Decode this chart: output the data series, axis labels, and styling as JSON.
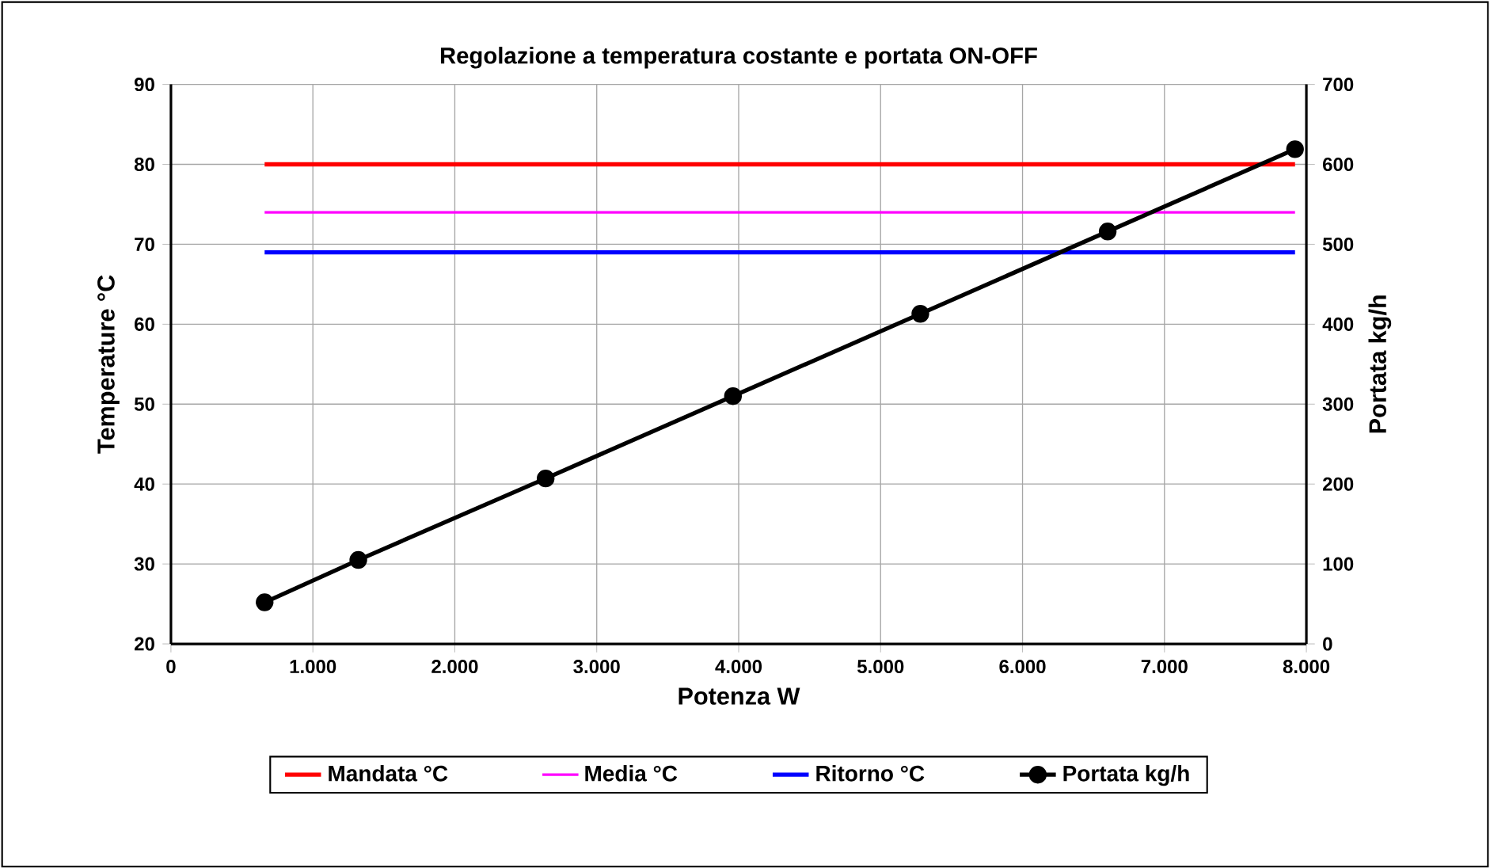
{
  "chart_data": {
    "type": "line",
    "title": "Regolazione a temperatura costante e portata ON-OFF",
    "xlabel": "Potenza W",
    "ylabel": "Temperature °C",
    "y2label": "Portata kg/h",
    "xlim": [
      0,
      8000
    ],
    "xticks": [
      0,
      {
        "value": 1000,
        "label": "1.000"
      },
      {
        "value": 2000,
        "label": "2.000"
      },
      {
        "value": 3000,
        "label": "3.000"
      },
      {
        "value": 4000,
        "label": "4.000"
      },
      {
        "value": 5000,
        "label": "5.000"
      },
      {
        "value": 6000,
        "label": "6.000"
      },
      {
        "value": 7000,
        "label": "7.000"
      },
      {
        "value": 8000,
        "label": "8.000"
      }
    ],
    "ylim": [
      20,
      90
    ],
    "yticks": [
      20,
      30,
      40,
      50,
      60,
      70,
      80,
      90
    ],
    "y2lim": [
      0,
      700
    ],
    "y2ticks": [
      0,
      100,
      200,
      300,
      400,
      500,
      600,
      700
    ],
    "grid": true,
    "legend": "bottom",
    "series": [
      {
        "name": "Mandata °C",
        "color": "#ff0000",
        "x": [
          660,
          7920
        ],
        "values": [
          80,
          80
        ],
        "marker": "none"
      },
      {
        "name": "Media °C",
        "color": "#ff00ff",
        "x": [
          660,
          7920
        ],
        "values": [
          74,
          74
        ],
        "marker": "none"
      },
      {
        "name": "Ritorno °C",
        "color": "#0000ff",
        "x": [
          660,
          7920
        ],
        "values": [
          69,
          69
        ],
        "marker": "none"
      },
      {
        "name": "Portata kg/h",
        "color": "#000000",
        "axis": "y2",
        "marker": "circle",
        "x": [
          660,
          1320,
          2640,
          3960,
          5280,
          6600,
          7920
        ],
        "values": [
          52,
          105,
          207,
          310,
          413,
          516,
          619
        ]
      }
    ]
  }
}
